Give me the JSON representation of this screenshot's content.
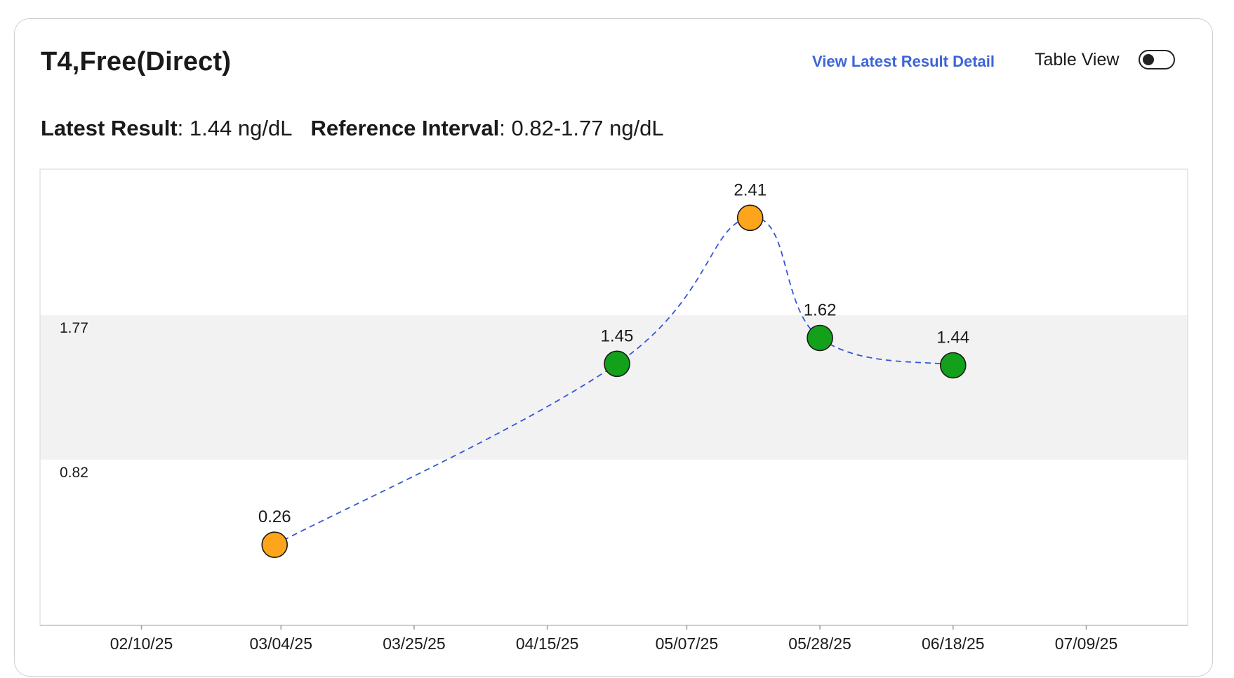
{
  "header": {
    "title": "T4,Free(Direct)",
    "detail_link": "View Latest Result Detail",
    "toggle_label": "Table View",
    "toggle_on": false
  },
  "summary": {
    "latest_label": "Latest Result",
    "latest_value": "1.44 ng/dL",
    "reference_label": "Reference Interval",
    "reference_value": "0.82-1.77 ng/dL"
  },
  "colors": {
    "accent_link": "#3e64d8",
    "in_range": "#13a01a",
    "out_of_range": "#ffa51c",
    "reference_band": "#f2f2f2",
    "trend_line": "#3556d6"
  },
  "chart_data": {
    "type": "scatter",
    "x_tick_labels": [
      "02/10/25",
      "03/04/25",
      "03/25/25",
      "04/15/25",
      "05/07/25",
      "05/28/25",
      "06/18/25",
      "07/09/25"
    ],
    "x_tick_dates": [
      "2025-02-10",
      "2025-03-04",
      "2025-03-25",
      "2025-04-15",
      "2025-05-07",
      "2025-05-28",
      "2025-06-18",
      "2025-07-09"
    ],
    "xlim": [
      "2025-01-25",
      "2025-07-25"
    ],
    "ylim": [
      -0.27,
      2.73
    ],
    "reference_band": {
      "low": 0.82,
      "high": 1.77,
      "low_label": "0.82",
      "high_label": "1.77"
    },
    "points": [
      {
        "date": "2025-03-03",
        "value": 0.26,
        "label": "0.26",
        "status": "out_of_range"
      },
      {
        "date": "2025-04-26",
        "value": 1.45,
        "label": "1.45",
        "status": "in_range"
      },
      {
        "date": "2025-05-17",
        "value": 2.41,
        "label": "2.41",
        "status": "out_of_range"
      },
      {
        "date": "2025-05-28",
        "value": 1.62,
        "label": "1.62",
        "status": "in_range"
      },
      {
        "date": "2025-06-18",
        "value": 1.44,
        "label": "1.44",
        "status": "in_range"
      }
    ],
    "trend_line": {
      "style": "dashed"
    },
    "grid": false
  }
}
